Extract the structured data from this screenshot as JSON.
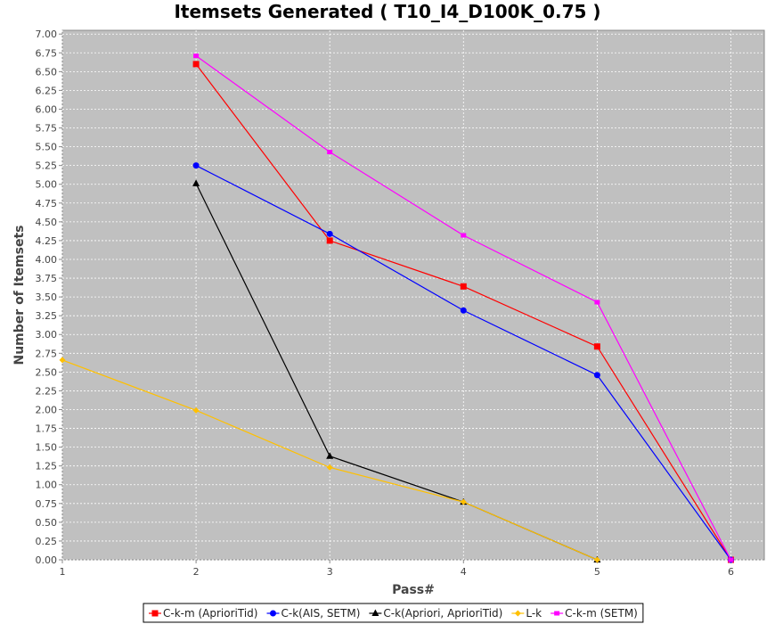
{
  "chart_data": {
    "type": "line",
    "title": "Itemsets Generated ( T10_I4_D100K_0.75 )",
    "xlabel": "Pass#",
    "ylabel": "Number of Itemsets",
    "xlim": [
      1,
      6.25
    ],
    "ylim": [
      0,
      7.05
    ],
    "x_ticks": [
      "1",
      "2",
      "3",
      "4",
      "5",
      "6"
    ],
    "y_ticks": [
      "0.00",
      "0.25",
      "0.50",
      "0.75",
      "1.00",
      "1.25",
      "1.50",
      "1.75",
      "2.00",
      "2.25",
      "2.50",
      "2.75",
      "3.00",
      "3.25",
      "3.50",
      "3.75",
      "4.00",
      "4.25",
      "4.50",
      "4.75",
      "5.00",
      "5.25",
      "5.50",
      "5.75",
      "6.00",
      "6.25",
      "6.50",
      "6.75",
      "7.00"
    ],
    "grid": true,
    "legend_position": "bottom",
    "plot_background": "#c0c0c0",
    "series": [
      {
        "name": "C-k-m (AprioriTid)",
        "color": "#ff0000",
        "marker": "square",
        "x": [
          2,
          3,
          4,
          5,
          6
        ],
        "y": [
          6.6,
          4.25,
          3.64,
          2.84,
          0.0
        ]
      },
      {
        "name": "C-k(AIS, SETM)",
        "color": "#0000ff",
        "marker": "circle",
        "x": [
          2,
          3,
          4,
          5,
          6
        ],
        "y": [
          5.25,
          4.34,
          3.32,
          2.46,
          0.0
        ]
      },
      {
        "name": "C-k(Apriori, AprioriTid)",
        "color": "#000000",
        "marker": "triangle",
        "x": [
          2,
          3,
          4,
          5
        ],
        "y": [
          5.01,
          1.38,
          0.77,
          0.0
        ]
      },
      {
        "name": "L-k",
        "color": "#ffc000",
        "marker": "diamond",
        "x": [
          1,
          2,
          3,
          4,
          5
        ],
        "y": [
          2.66,
          1.99,
          1.23,
          0.77,
          0.0
        ]
      },
      {
        "name": "C-k-m (SETM)",
        "color": "#ff00ff",
        "marker": "square-small",
        "x": [
          2,
          3,
          4,
          5,
          6
        ],
        "y": [
          6.71,
          5.43,
          4.32,
          3.43,
          0.0
        ]
      }
    ]
  }
}
